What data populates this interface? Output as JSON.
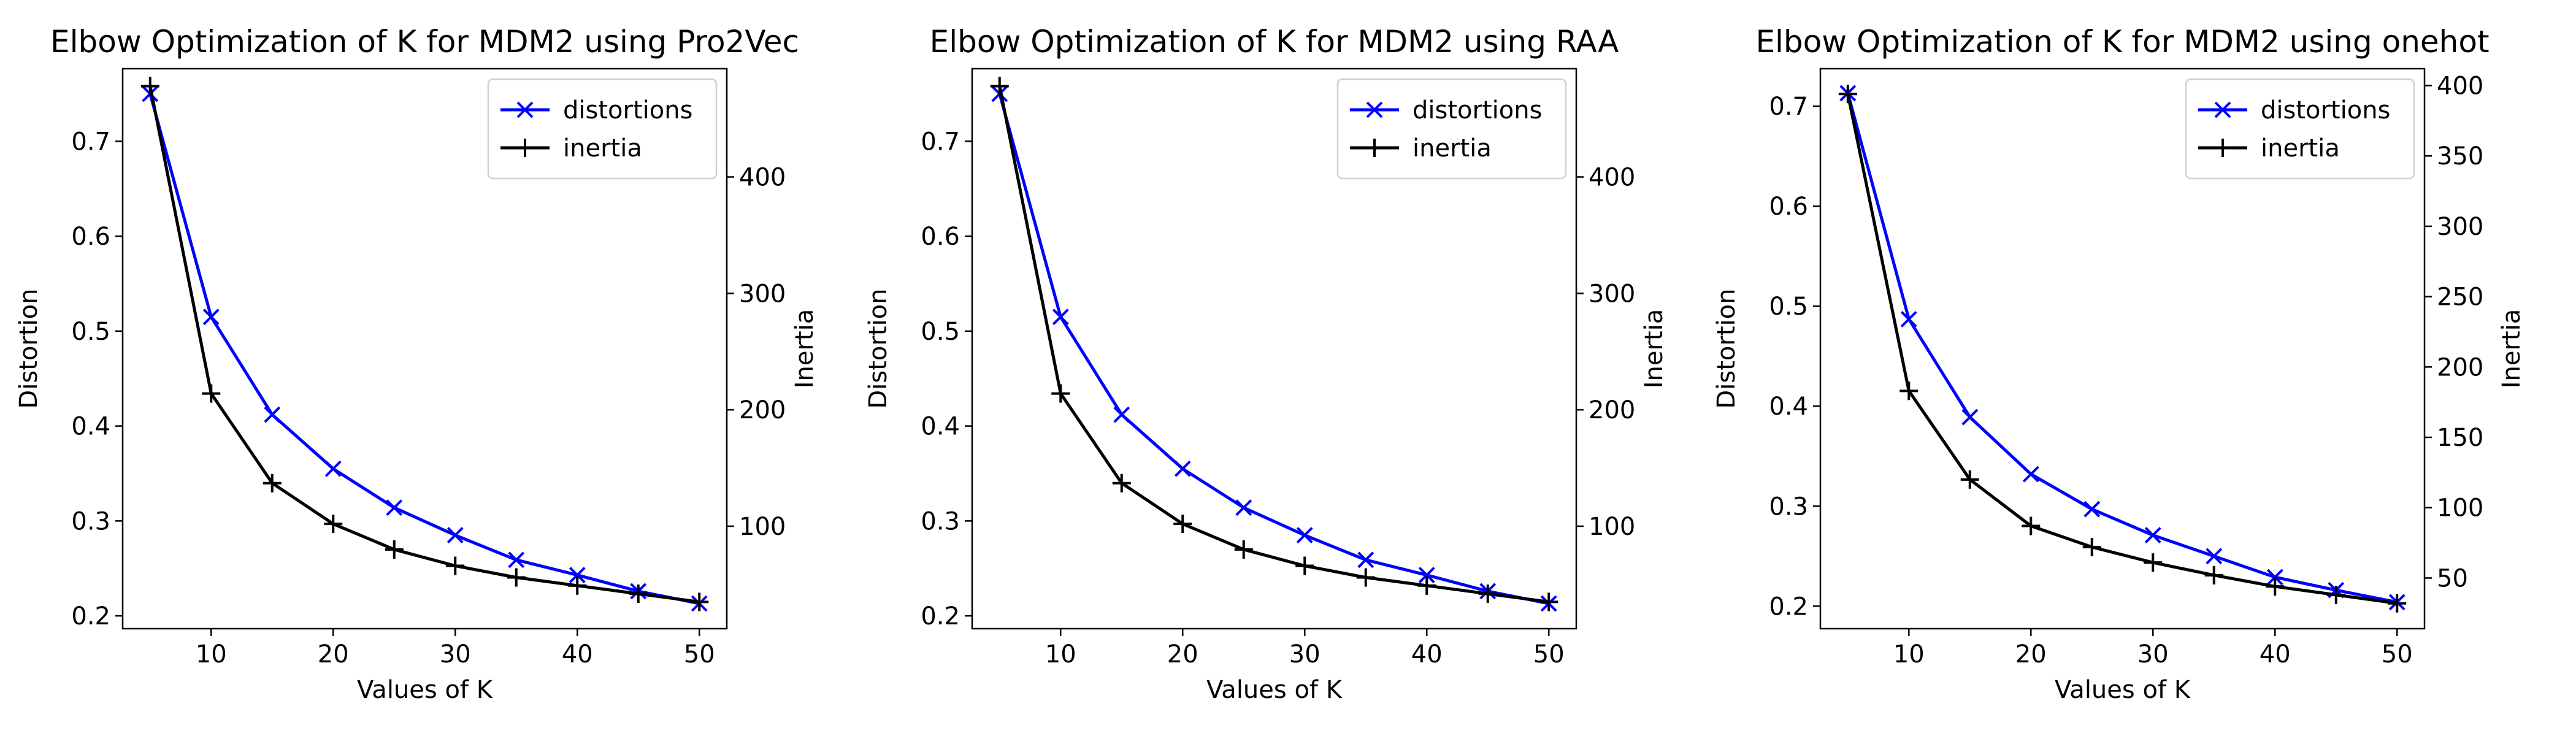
{
  "figure": {
    "charts": [
      {
        "panel": "pro2vec"
      },
      {
        "panel": "raa"
      },
      {
        "panel": "onehot"
      }
    ]
  },
  "chart_data": [
    {
      "type": "line",
      "title": "Elbow Optimization of K for MDM2 using Pro2Vec",
      "xlabel": "Values of K",
      "ylabel": "Distortion",
      "y2label": "Inertia",
      "x": [
        5,
        10,
        15,
        20,
        25,
        30,
        35,
        40,
        45,
        50
      ],
      "xticks": [
        10,
        20,
        30,
        40,
        50
      ],
      "xlim": [
        2.75,
        52.25
      ],
      "ylim": [
        0.1865,
        0.7765
      ],
      "yticks": [
        0.2,
        0.3,
        0.4,
        0.5,
        0.6,
        0.7
      ],
      "y2lim": [
        12,
        493
      ],
      "y2ticks": [
        100,
        200,
        300,
        400
      ],
      "legend_position": "top-right",
      "series": [
        {
          "name": "distortions",
          "axis": "left",
          "color": "#0000ff",
          "marker": "x",
          "values": [
            0.75,
            0.515,
            0.412,
            0.355,
            0.314,
            0.285,
            0.259,
            0.243,
            0.226,
            0.213
          ]
        },
        {
          "name": "inertia",
          "axis": "right",
          "color": "#000000",
          "marker": "+",
          "values": [
            478,
            214,
            137,
            102,
            80,
            66,
            56,
            49,
            42,
            35
          ]
        }
      ]
    },
    {
      "type": "line",
      "title": "Elbow Optimization of K for MDM2 using RAA",
      "xlabel": "Values of K",
      "ylabel": "Distortion",
      "y2label": "Inertia",
      "x": [
        5,
        10,
        15,
        20,
        25,
        30,
        35,
        40,
        45,
        50
      ],
      "xticks": [
        10,
        20,
        30,
        40,
        50
      ],
      "xlim": [
        2.75,
        52.25
      ],
      "ylim": [
        0.1865,
        0.7765
      ],
      "yticks": [
        0.2,
        0.3,
        0.4,
        0.5,
        0.6,
        0.7
      ],
      "y2lim": [
        12,
        493
      ],
      "y2ticks": [
        100,
        200,
        300,
        400
      ],
      "legend_position": "top-right",
      "series": [
        {
          "name": "distortions",
          "axis": "left",
          "color": "#0000ff",
          "marker": "x",
          "values": [
            0.75,
            0.515,
            0.412,
            0.355,
            0.314,
            0.285,
            0.259,
            0.243,
            0.226,
            0.213
          ]
        },
        {
          "name": "inertia",
          "axis": "right",
          "color": "#000000",
          "marker": "+",
          "values": [
            478,
            214,
            137,
            102,
            80,
            66,
            56,
            49,
            42,
            35
          ]
        }
      ]
    },
    {
      "type": "line",
      "title": "Elbow Optimization of K for MDM2 using onehot",
      "xlabel": "Values of K",
      "ylabel": "Distortion",
      "y2label": "Inertia",
      "x": [
        5,
        10,
        15,
        20,
        25,
        30,
        35,
        40,
        45,
        50
      ],
      "xticks": [
        10,
        20,
        30,
        40,
        50
      ],
      "xlim": [
        2.75,
        52.25
      ],
      "ylim": [
        0.1775,
        0.7375
      ],
      "yticks": [
        0.2,
        0.3,
        0.4,
        0.5,
        0.6,
        0.7
      ],
      "y2lim": [
        14,
        412
      ],
      "y2ticks": [
        50,
        100,
        150,
        200,
        250,
        300,
        350,
        400
      ],
      "legend_position": "top-right",
      "series": [
        {
          "name": "distortions",
          "axis": "left",
          "color": "#0000ff",
          "marker": "x",
          "values": [
            0.713,
            0.487,
            0.389,
            0.332,
            0.297,
            0.271,
            0.25,
            0.229,
            0.216,
            0.204
          ]
        },
        {
          "name": "inertia",
          "axis": "right",
          "color": "#000000",
          "marker": "+",
          "values": [
            394,
            183,
            120,
            87,
            72,
            61,
            52,
            44,
            38,
            32
          ]
        }
      ]
    }
  ]
}
